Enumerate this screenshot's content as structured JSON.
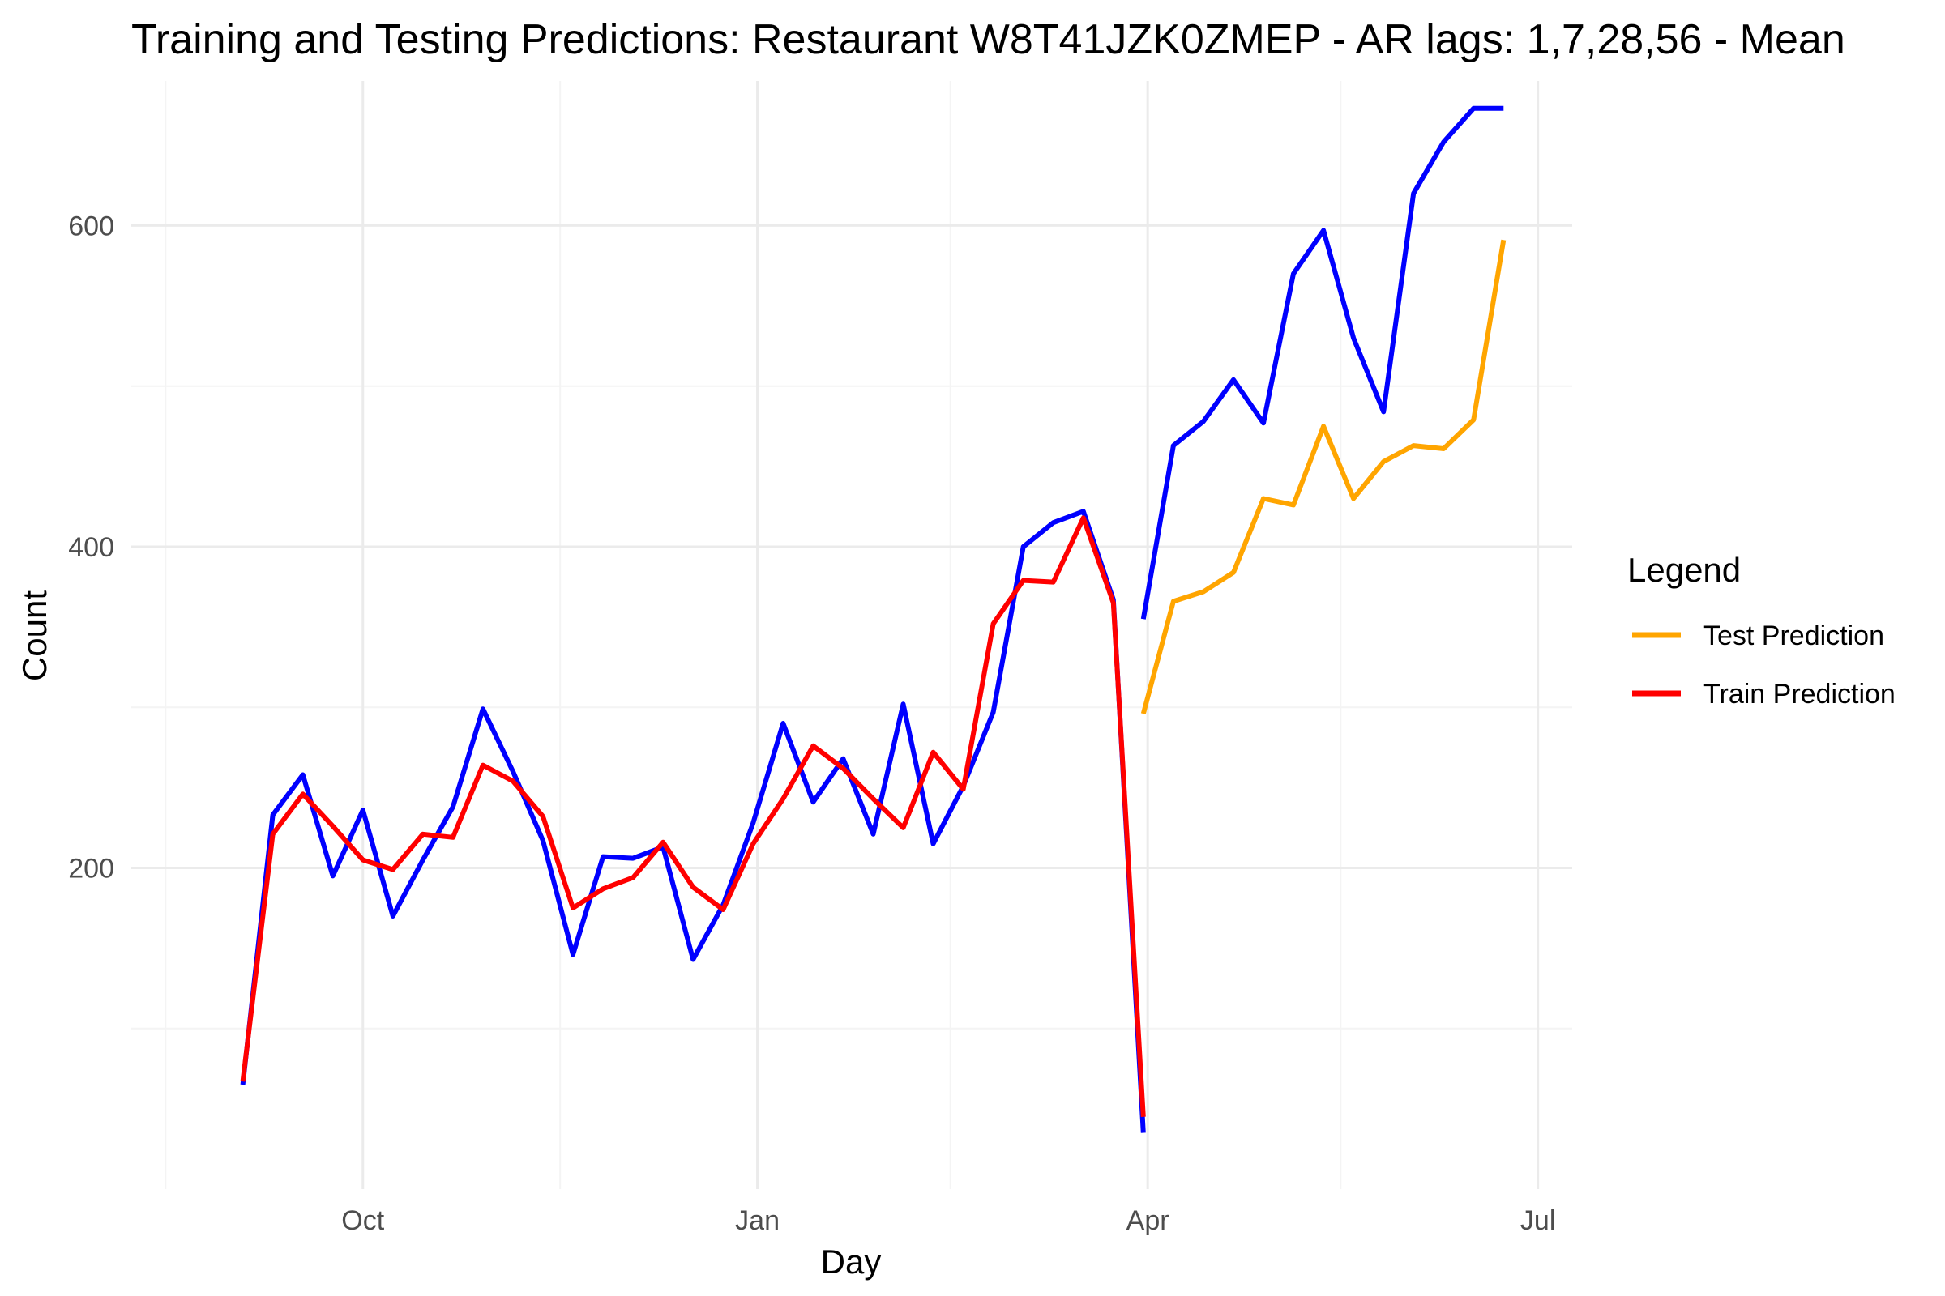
{
  "chart_data": {
    "type": "line",
    "title": "Training and Testing Predictions: Restaurant W8T41JZK0ZMEP - AR lags: 1,7,28,56 - Mean",
    "xlabel": "Day",
    "ylabel": "Count",
    "x_ticks": [
      "Oct",
      "Jan",
      "Apr",
      "Jul"
    ],
    "y_ticks": [
      200,
      400,
      600
    ],
    "xlim": [
      "2023-08-08",
      "2024-07-09"
    ],
    "ylim": [
      0,
      690
    ],
    "grid": true,
    "legend": {
      "title": "Legend",
      "position": "right",
      "entries": [
        {
          "label": "Test Prediction",
          "color": "#FFA500"
        },
        {
          "label": "Train Prediction",
          "color": "#FF0000"
        }
      ]
    },
    "series": [
      {
        "color": "#0000FF",
        "points": [
          [
            "2023-09-03",
            65
          ],
          [
            "2023-09-10",
            233
          ],
          [
            "2023-09-17",
            258
          ],
          [
            "2023-09-24",
            195
          ],
          [
            "2023-10-01",
            236
          ],
          [
            "2023-10-08",
            170
          ],
          [
            "2023-10-15",
            205
          ],
          [
            "2023-10-22",
            238
          ],
          [
            "2023-10-29",
            299
          ],
          [
            "2023-11-05",
            260
          ],
          [
            "2023-11-12",
            217
          ],
          [
            "2023-11-19",
            146
          ],
          [
            "2023-11-26",
            207
          ],
          [
            "2023-12-03",
            206
          ],
          [
            "2023-12-10",
            213
          ],
          [
            "2023-12-17",
            143
          ],
          [
            "2023-12-24",
            177
          ],
          [
            "2023-12-31",
            228
          ],
          [
            "2024-01-07",
            290
          ],
          [
            "2024-01-14",
            241
          ],
          [
            "2024-01-21",
            268
          ],
          [
            "2024-01-28",
            221
          ],
          [
            "2024-02-04",
            302
          ],
          [
            "2024-02-11",
            215
          ],
          [
            "2024-02-18",
            251
          ],
          [
            "2024-02-25",
            297
          ],
          [
            "2024-03-03",
            400
          ],
          [
            "2024-03-10",
            415
          ],
          [
            "2024-03-17",
            422
          ],
          [
            "2024-03-24",
            367
          ],
          [
            "2024-03-31",
            35
          ]
        ]
      },
      {
        "color": "#0000FF",
        "points": [
          [
            "2024-03-31",
            355
          ],
          [
            "2024-04-07",
            463
          ],
          [
            "2024-04-14",
            478
          ],
          [
            "2024-04-21",
            504
          ],
          [
            "2024-04-28",
            477
          ],
          [
            "2024-05-05",
            570
          ],
          [
            "2024-05-12",
            597
          ],
          [
            "2024-05-19",
            530
          ],
          [
            "2024-05-26",
            484
          ],
          [
            "2024-06-02",
            620
          ],
          [
            "2024-06-09",
            652
          ],
          [
            "2024-06-16",
            673
          ],
          [
            "2024-06-23",
            673
          ]
        ]
      },
      {
        "name": "Train Prediction",
        "color": "#FF0000",
        "points": [
          [
            "2023-09-03",
            67
          ],
          [
            "2023-09-10",
            221
          ],
          [
            "2023-09-17",
            246
          ],
          [
            "2023-09-24",
            226
          ],
          [
            "2023-10-01",
            205
          ],
          [
            "2023-10-08",
            199
          ],
          [
            "2023-10-15",
            221
          ],
          [
            "2023-10-22",
            219
          ],
          [
            "2023-10-29",
            264
          ],
          [
            "2023-11-05",
            254
          ],
          [
            "2023-11-12",
            232
          ],
          [
            "2023-11-19",
            175
          ],
          [
            "2023-11-26",
            187
          ],
          [
            "2023-12-03",
            194
          ],
          [
            "2023-12-10",
            216
          ],
          [
            "2023-12-17",
            188
          ],
          [
            "2023-12-24",
            174
          ],
          [
            "2023-12-31",
            215
          ],
          [
            "2024-01-07",
            243
          ],
          [
            "2024-01-14",
            276
          ],
          [
            "2024-01-21",
            262
          ],
          [
            "2024-01-28",
            243
          ],
          [
            "2024-02-04",
            225
          ],
          [
            "2024-02-11",
            272
          ],
          [
            "2024-02-18",
            249
          ],
          [
            "2024-02-25",
            352
          ],
          [
            "2024-03-03",
            379
          ],
          [
            "2024-03-10",
            378
          ],
          [
            "2024-03-17",
            418
          ],
          [
            "2024-03-24",
            365
          ],
          [
            "2024-03-31",
            45
          ]
        ]
      },
      {
        "name": "Test Prediction",
        "color": "#FFA500",
        "points": [
          [
            "2024-03-31",
            296
          ],
          [
            "2024-04-07",
            366
          ],
          [
            "2024-04-14",
            372
          ],
          [
            "2024-04-21",
            384
          ],
          [
            "2024-04-28",
            430
          ],
          [
            "2024-05-05",
            426
          ],
          [
            "2024-05-12",
            475
          ],
          [
            "2024-05-19",
            430
          ],
          [
            "2024-05-26",
            453
          ],
          [
            "2024-06-02",
            463
          ],
          [
            "2024-06-09",
            461
          ],
          [
            "2024-06-16",
            479
          ],
          [
            "2024-06-23",
            591
          ]
        ]
      }
    ]
  }
}
